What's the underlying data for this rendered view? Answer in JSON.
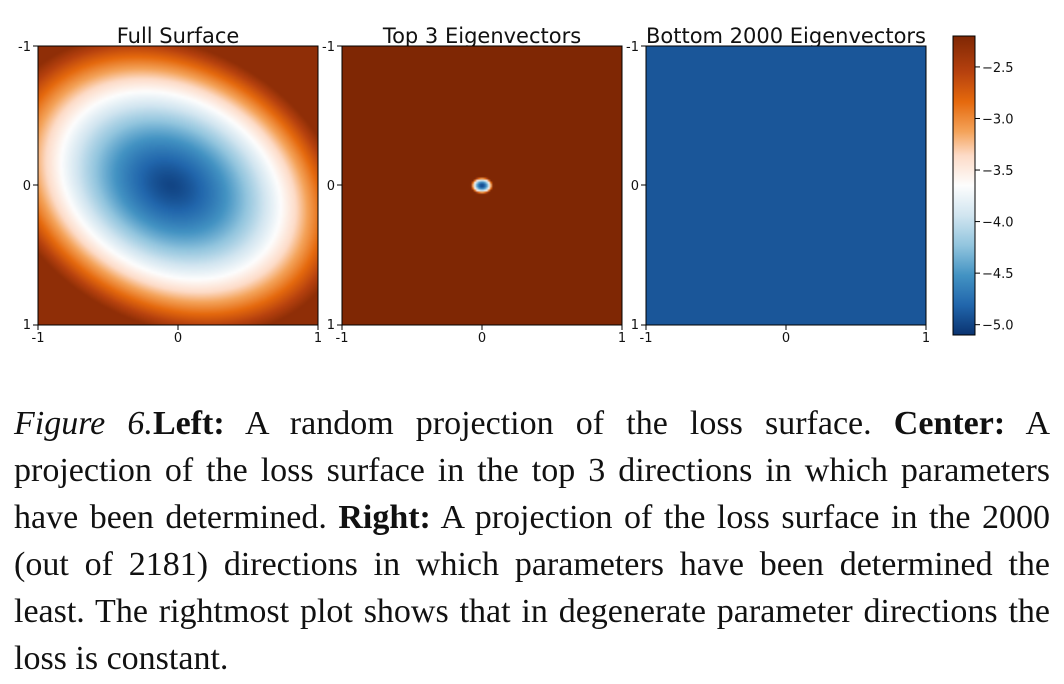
{
  "chart_data": {
    "type": "heatmap",
    "panels": [
      {
        "title": "Full Surface",
        "x_ticks": [
          "-1",
          "0",
          "1"
        ],
        "y_ticks": [
          "-1",
          "0",
          "1"
        ],
        "xlim": [
          -1,
          1
        ],
        "ylim": [
          -1,
          1
        ],
        "surface": "ellipse",
        "min_value": -5.0,
        "edge_value": -2.3,
        "center": [
          -0.05,
          0.0
        ],
        "radii": [
          0.95,
          0.72
        ],
        "rotation_deg": -28
      },
      {
        "title": "Top 3 Eigenvectors",
        "x_ticks": [
          "-1",
          "0",
          "1"
        ],
        "y_ticks": [
          "-1",
          "0",
          "1"
        ],
        "xlim": [
          -1,
          1
        ],
        "ylim": [
          -1,
          1
        ],
        "surface": "spot",
        "min_value": -5.0,
        "edge_value": -2.2,
        "center": [
          0.0,
          0.0
        ],
        "radii": [
          0.08,
          0.06
        ],
        "rotation_deg": 0
      },
      {
        "title": "Bottom 2000 Eigenvectors",
        "x_ticks": [
          "-1",
          "0",
          "1"
        ],
        "y_ticks": [
          "-1",
          "0",
          "1"
        ],
        "xlim": [
          -1,
          1
        ],
        "ylim": [
          -1,
          1
        ],
        "surface": "constant",
        "value": -4.9
      }
    ],
    "colorbar": {
      "range": [
        -5.1,
        -2.2
      ],
      "ticks": [
        -2.5,
        -3.0,
        -3.5,
        -4.0,
        -4.5,
        -5.0
      ],
      "tick_labels": [
        "−2.5",
        "−3.0",
        "−3.5",
        "−4.0",
        "−4.5",
        "−5.0"
      ],
      "colormap": [
        "#0a3370",
        "#2166ac",
        "#4393c3",
        "#92c5de",
        "#d1e5f0",
        "#fdfdfd",
        "#fddbc7",
        "#f4a35a",
        "#e5690d",
        "#b6410e",
        "#7f2704"
      ],
      "colormap_stops": [
        0.0,
        0.1,
        0.2,
        0.3,
        0.4,
        0.5,
        0.6,
        0.68,
        0.78,
        0.88,
        1.0
      ]
    }
  },
  "caption": {
    "label": "Figure 6.",
    "left_heading": "Left:",
    "left_text": " A random projection of the loss surface. ",
    "center_heading": "Center:",
    "center_text": " A projection of the loss surface in the top 3 directions in which parameters have been determined. ",
    "right_heading": "Right:",
    "right_text": " A projection of the loss surface in the 2000 (out of 2181) directions in which parameters have been determined the least. The rightmost plot shows that in degenerate parameter directions the loss is constant."
  }
}
